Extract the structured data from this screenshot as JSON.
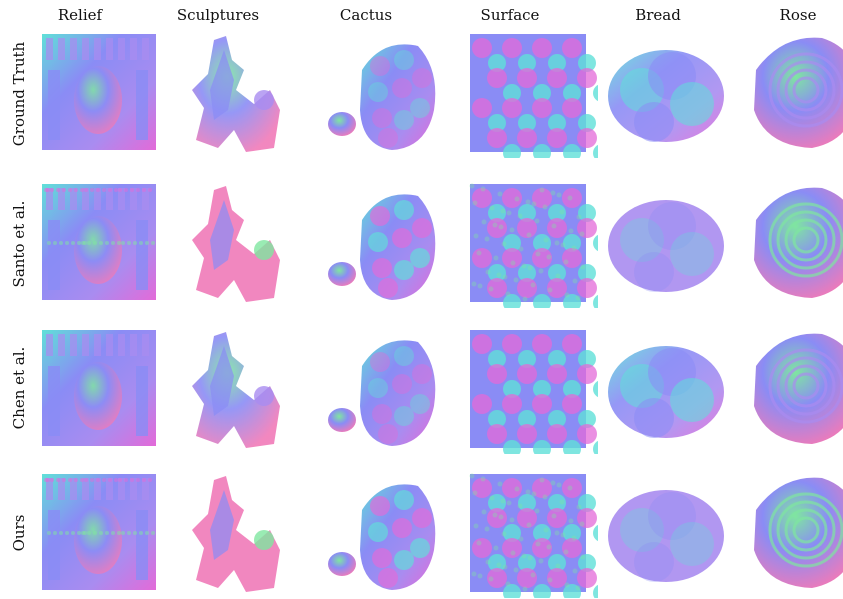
{
  "columns": [
    "Relief",
    "Sculptures",
    "Cactus",
    "Surface",
    "Bread",
    "Rose"
  ],
  "rows": [
    "Ground Truth",
    "Santo et al.",
    "Chen et al.",
    "Ours"
  ],
  "colors": {
    "normal_blue": "#8a8cf5",
    "normal_cyan": "#5fe0d8",
    "normal_magenta": "#e36ad8",
    "normal_green": "#7fe6a0",
    "normal_pink": "#f07ab8",
    "normal_violet": "#a98cf0"
  }
}
